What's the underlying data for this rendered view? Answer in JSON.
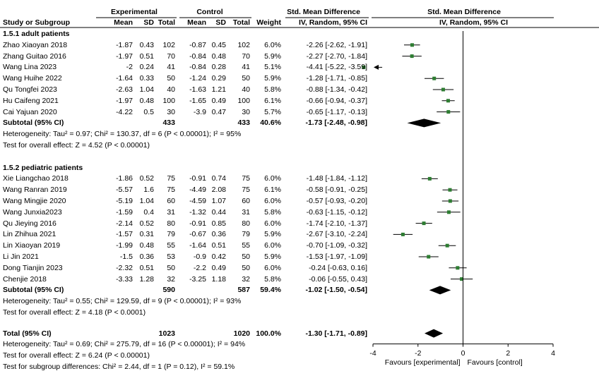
{
  "header": {
    "group_experimental": "Experimental",
    "group_control": "Control",
    "smd_title_left": "Std. Mean Difference",
    "smd_title_right": "Std. Mean Difference",
    "col_study": "Study or Subgroup",
    "col_mean": "Mean",
    "col_sd": "SD",
    "col_total": "Total",
    "col_weight": "Weight",
    "col_method_left": "IV, Random, 95% CI",
    "col_method_right": "IV, Random, 95% CI"
  },
  "chart_data": {
    "type": "forest",
    "axis": {
      "min": -4,
      "max": 4,
      "ticks": [
        "-4",
        "-2",
        "0",
        "2",
        "4"
      ],
      "left_label": "Favours [experimental]",
      "right_label": "Favours [control]"
    },
    "subgroups": [
      {
        "name": "1.5.1 adult patients",
        "studies": [
          {
            "study": "Zhao Xiaoyan 2018",
            "e_mean": "-1.87",
            "e_sd": "0.43",
            "e_total": "102",
            "c_mean": "-0.87",
            "c_sd": "0.45",
            "c_total": "102",
            "weight": "6.0%",
            "ci": "-2.26 [-2.62, -1.91]",
            "est": -2.26,
            "lo": -2.62,
            "hi": -1.91
          },
          {
            "study": "Zhang Guitao 2016",
            "e_mean": "-1.97",
            "e_sd": "0.51",
            "e_total": "70",
            "c_mean": "-0.84",
            "c_sd": "0.48",
            "c_total": "70",
            "weight": "5.9%",
            "ci": "-2.27 [-2.70, -1.84]",
            "est": -2.27,
            "lo": -2.7,
            "hi": -1.84
          },
          {
            "study": "Wang Lina 2023",
            "e_mean": "-2",
            "e_sd": "0.24",
            "e_total": "41",
            "c_mean": "-0.84",
            "c_sd": "0.28",
            "c_total": "41",
            "weight": "5.1%",
            "ci": "-4.41 [-5.22, -3.59]",
            "est": -4.41,
            "lo": -5.22,
            "hi": -3.59
          },
          {
            "study": "Wang Huihe 2022",
            "e_mean": "-1.64",
            "e_sd": "0.33",
            "e_total": "50",
            "c_mean": "-1.24",
            "c_sd": "0.29",
            "c_total": "50",
            "weight": "5.9%",
            "ci": "-1.28 [-1.71, -0.85]",
            "est": -1.28,
            "lo": -1.71,
            "hi": -0.85
          },
          {
            "study": "Qu Tongfei 2023",
            "e_mean": "-2.63",
            "e_sd": "1.04",
            "e_total": "40",
            "c_mean": "-1.63",
            "c_sd": "1.21",
            "c_total": "40",
            "weight": "5.8%",
            "ci": "-0.88 [-1.34, -0.42]",
            "est": -0.88,
            "lo": -1.34,
            "hi": -0.42
          },
          {
            "study": "Hu Caifeng 2021",
            "e_mean": "-1.97",
            "e_sd": "0.48",
            "e_total": "100",
            "c_mean": "-1.65",
            "c_sd": "0.49",
            "c_total": "100",
            "weight": "6.1%",
            "ci": "-0.66 [-0.94, -0.37]",
            "est": -0.66,
            "lo": -0.94,
            "hi": -0.37
          },
          {
            "study": "Cai Yajuan 2020",
            "e_mean": "-4.22",
            "e_sd": "0.5",
            "e_total": "30",
            "c_mean": "-3.9",
            "c_sd": "0.47",
            "c_total": "30",
            "weight": "5.7%",
            "ci": "-0.65 [-1.17, -0.13]",
            "est": -0.65,
            "lo": -1.17,
            "hi": -0.13
          }
        ],
        "subtotal": {
          "label": "Subtotal (95% CI)",
          "e_total": "433",
          "c_total": "433",
          "weight": "40.6%",
          "ci": "-1.73 [-2.48, -0.98]",
          "est": -1.73,
          "lo": -2.48,
          "hi": -0.98
        },
        "heterogeneity": "Heterogeneity: Tau² = 0.97; Chi² = 130.37, df = 6 (P < 0.00001); I² = 95%",
        "overall_effect": "Test for overall effect: Z = 4.52 (P < 0.00001)"
      },
      {
        "name": "1.5.2 pediatric patients",
        "studies": [
          {
            "study": "Xie Liangchao 2018",
            "e_mean": "-1.86",
            "e_sd": "0.52",
            "e_total": "75",
            "c_mean": "-0.91",
            "c_sd": "0.74",
            "c_total": "75",
            "weight": "6.0%",
            "ci": "-1.48 [-1.84, -1.12]",
            "est": -1.48,
            "lo": -1.84,
            "hi": -1.12
          },
          {
            "study": "Wang Ranran 2019",
            "e_mean": "-5.57",
            "e_sd": "1.6",
            "e_total": "75",
            "c_mean": "-4.49",
            "c_sd": "2.08",
            "c_total": "75",
            "weight": "6.1%",
            "ci": "-0.58 [-0.91, -0.25]",
            "est": -0.58,
            "lo": -0.91,
            "hi": -0.25
          },
          {
            "study": "Wang Mingjie 2020",
            "e_mean": "-5.19",
            "e_sd": "1.04",
            "e_total": "60",
            "c_mean": "-4.59",
            "c_sd": "1.07",
            "c_total": "60",
            "weight": "6.0%",
            "ci": "-0.57 [-0.93, -0.20]",
            "est": -0.57,
            "lo": -0.93,
            "hi": -0.2
          },
          {
            "study": "Wang Junxia2023",
            "e_mean": "-1.59",
            "e_sd": "0.4",
            "e_total": "31",
            "c_mean": "-1.32",
            "c_sd": "0.44",
            "c_total": "31",
            "weight": "5.8%",
            "ci": "-0.63 [-1.15, -0.12]",
            "est": -0.63,
            "lo": -1.15,
            "hi": -0.12
          },
          {
            "study": "Qu Jieying 2016",
            "e_mean": "-2.14",
            "e_sd": "0.52",
            "e_total": "80",
            "c_mean": "-0.91",
            "c_sd": "0.85",
            "c_total": "80",
            "weight": "6.0%",
            "ci": "-1.74 [-2.10, -1.37]",
            "est": -1.74,
            "lo": -2.1,
            "hi": -1.37
          },
          {
            "study": "Lin Zhihua 2021",
            "e_mean": "-1.57",
            "e_sd": "0.31",
            "e_total": "79",
            "c_mean": "-0.67",
            "c_sd": "0.36",
            "c_total": "79",
            "weight": "5.9%",
            "ci": "-2.67 [-3.10, -2.24]",
            "est": -2.67,
            "lo": -3.1,
            "hi": -2.24
          },
          {
            "study": "Lin Xiaoyan 2019",
            "e_mean": "-1.99",
            "e_sd": "0.48",
            "e_total": "55",
            "c_mean": "-1.64",
            "c_sd": "0.51",
            "c_total": "55",
            "weight": "6.0%",
            "ci": "-0.70 [-1.09, -0.32]",
            "est": -0.7,
            "lo": -1.09,
            "hi": -0.32
          },
          {
            "study": "Li Jin 2021",
            "e_mean": "-1.5",
            "e_sd": "0.36",
            "e_total": "53",
            "c_mean": "-0.9",
            "c_sd": "0.42",
            "c_total": "50",
            "weight": "5.9%",
            "ci": "-1.53 [-1.97, -1.09]",
            "est": -1.53,
            "lo": -1.97,
            "hi": -1.09
          },
          {
            "study": "Dong Tianjin 2023",
            "e_mean": "-2.32",
            "e_sd": "0.51",
            "e_total": "50",
            "c_mean": "-2.2",
            "c_sd": "0.49",
            "c_total": "50",
            "weight": "6.0%",
            "ci": "-0.24 [-0.63, 0.16]",
            "est": -0.24,
            "lo": -0.63,
            "hi": 0.16
          },
          {
            "study": "Chenjie 2018",
            "e_mean": "-3.33",
            "e_sd": "1.28",
            "e_total": "32",
            "c_mean": "-3.25",
            "c_sd": "1.18",
            "c_total": "32",
            "weight": "5.8%",
            "ci": "-0.06 [-0.55, 0.43]",
            "est": -0.06,
            "lo": -0.55,
            "hi": 0.43
          }
        ],
        "subtotal": {
          "label": "Subtotal (95% CI)",
          "e_total": "590",
          "c_total": "587",
          "weight": "59.4%",
          "ci": "-1.02 [-1.50, -0.54]",
          "est": -1.02,
          "lo": -1.5,
          "hi": -0.54
        },
        "heterogeneity": "Heterogeneity: Tau² = 0.55; Chi² = 129.59, df = 9 (P < 0.00001); I² = 93%",
        "overall_effect": "Test for overall effect: Z = 4.18 (P < 0.0001)"
      }
    ],
    "total": {
      "label": "Total (95% CI)",
      "e_total": "1023",
      "c_total": "1020",
      "weight": "100.0%",
      "ci": "-1.30 [-1.71, -0.89]",
      "est": -1.3,
      "lo": -1.71,
      "hi": -0.89
    },
    "total_heterogeneity": "Heterogeneity: Tau² = 0.69; Chi² = 275.79, df = 16 (P < 0.00001); I² = 94%",
    "total_overall_effect": "Test for overall effect: Z = 6.24 (P < 0.00001)",
    "subgroup_differences": "Test for subgroup differences: Chi² = 2.44, df = 1 (P = 0.12), I² = 59.1%",
    "colors": {
      "square": "#2e7d32",
      "diamond": "#000000",
      "line": "#000000"
    }
  }
}
